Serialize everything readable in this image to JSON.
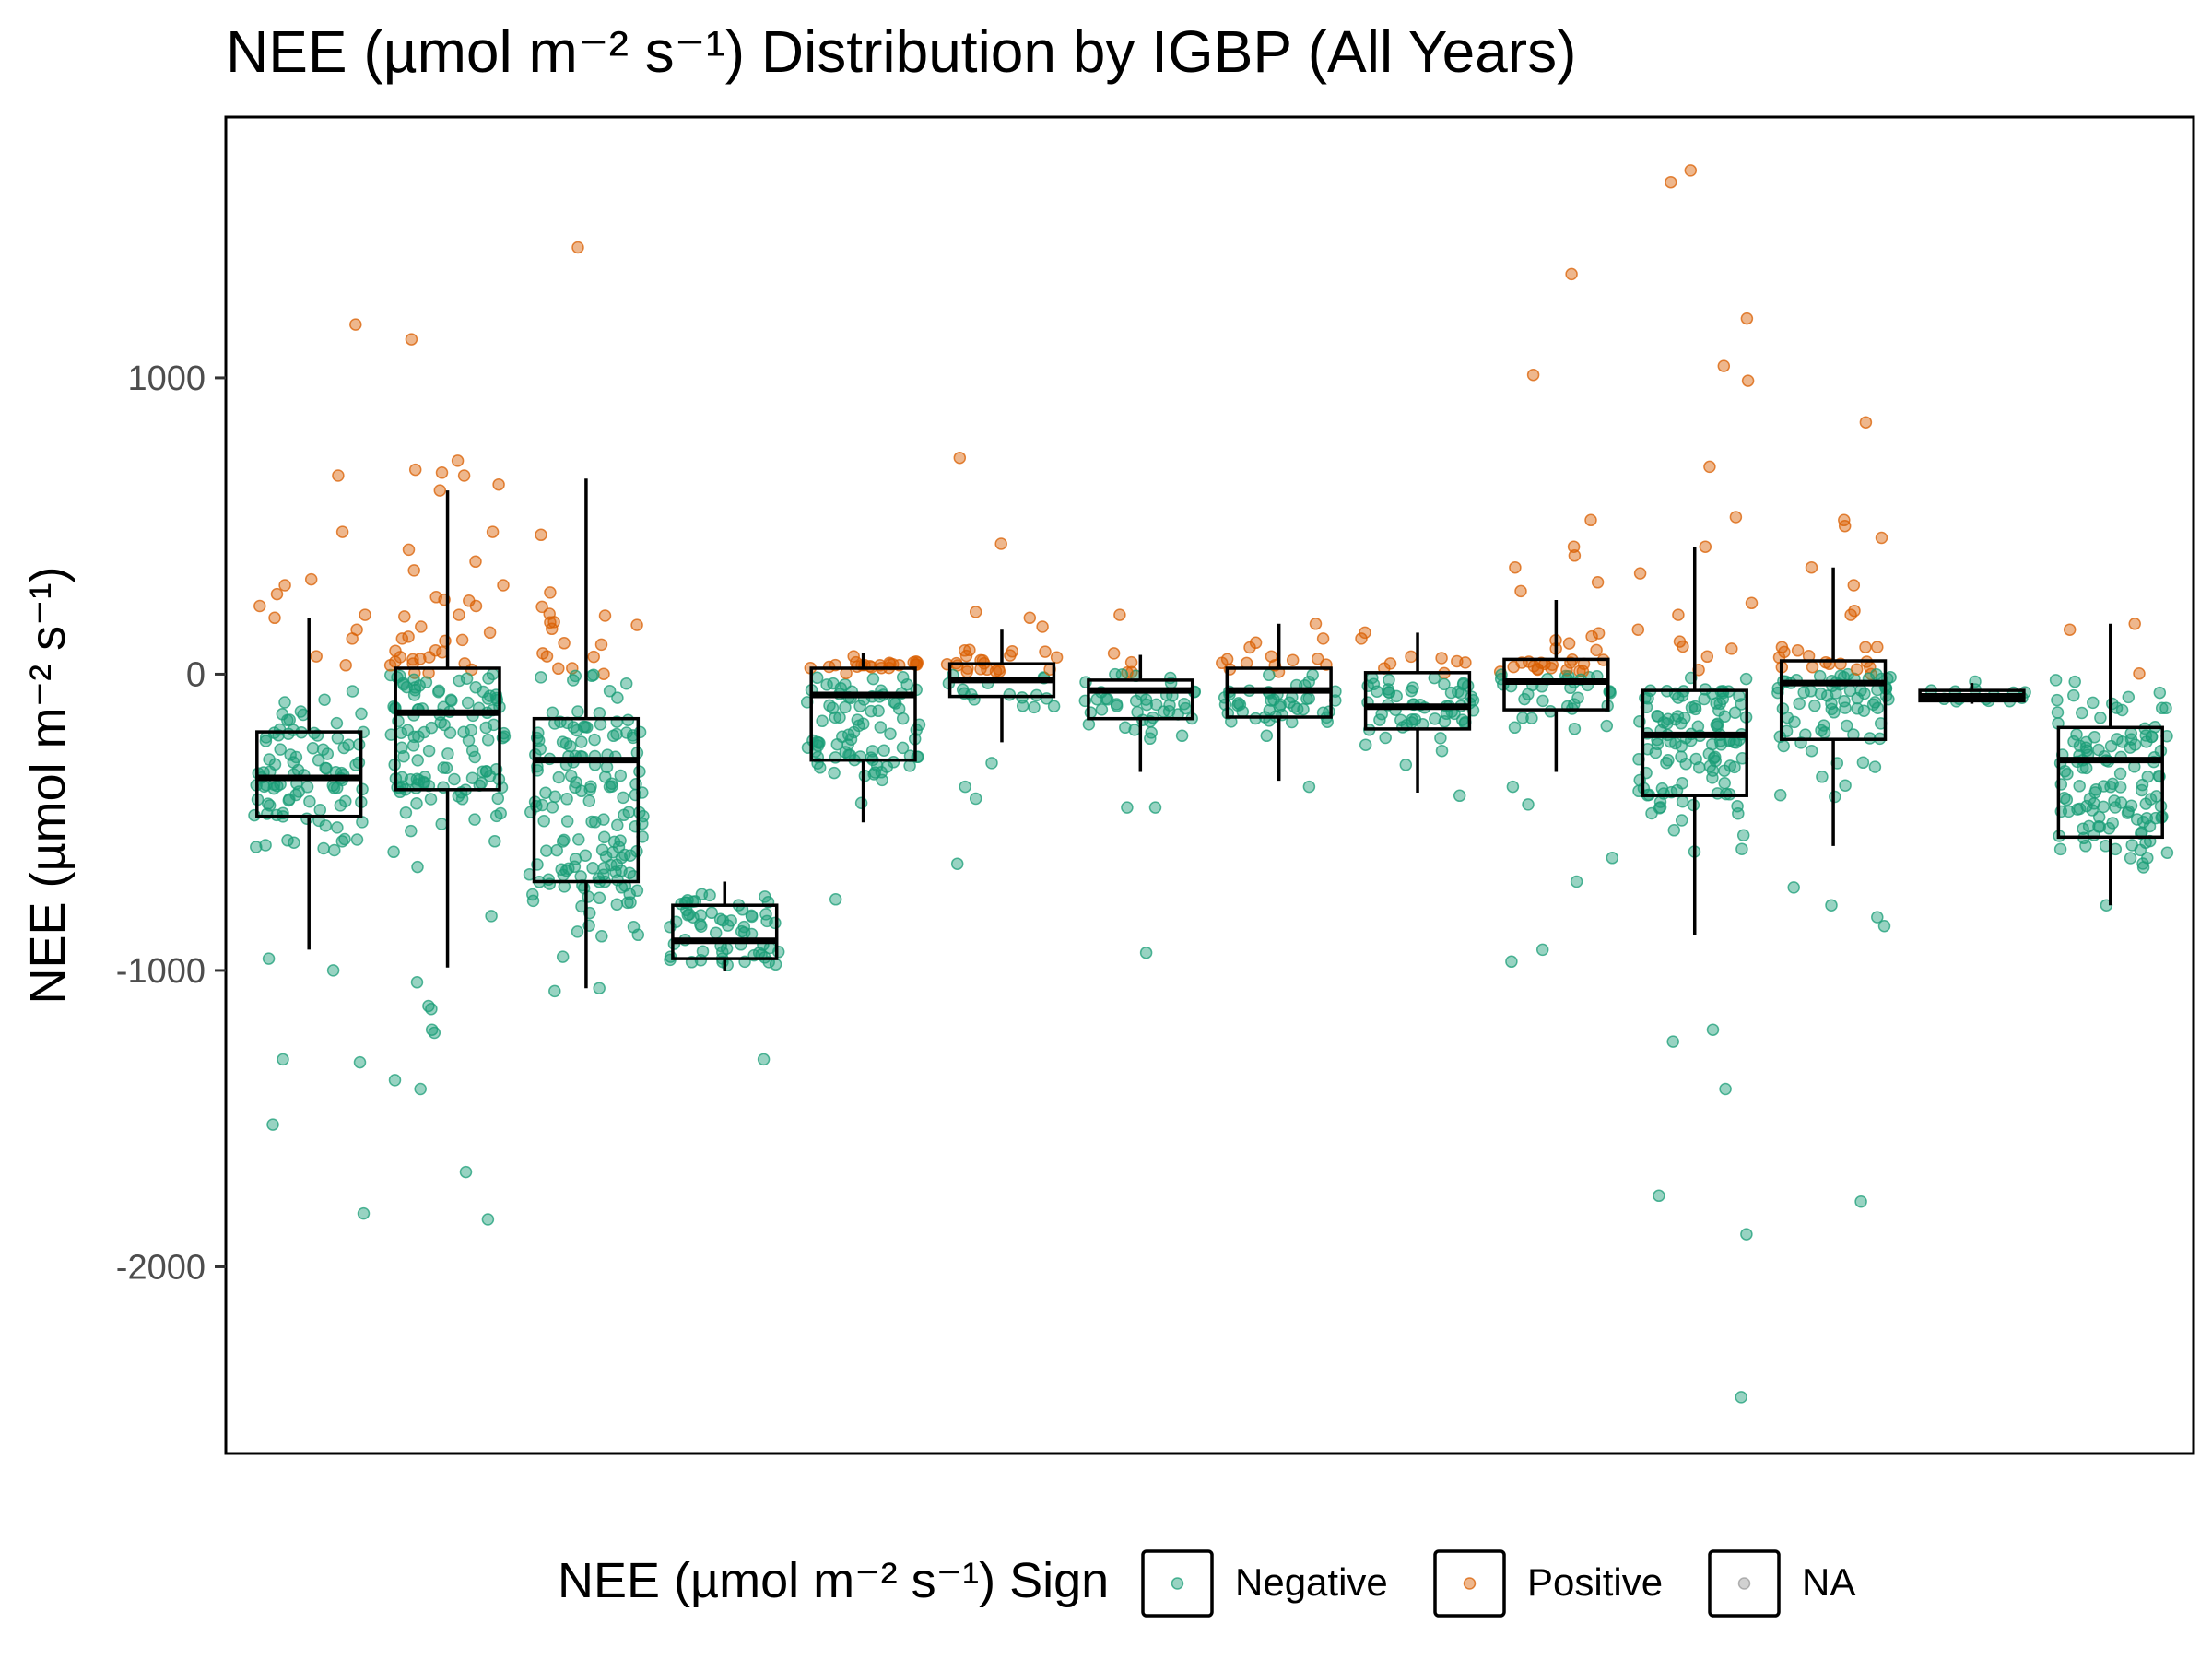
{
  "chart_data": {
    "type": "box",
    "title": "NEE (µmol m⁻² s⁻¹) Distribution by IGBP (All Years)",
    "xlabel": "",
    "ylabel": "NEE (µmol m⁻² s⁻¹)",
    "ylim": [
      -2630,
      1880
    ],
    "yticks": [
      1000,
      0,
      -1000,
      -2000
    ],
    "ytick_labels": [
      "1000",
      "0",
      "-1000",
      "-2000"
    ],
    "grid": false,
    "legend": {
      "title": "NEE (µmol m⁻² s⁻¹) Sign",
      "placement": "bottom",
      "entries": [
        {
          "label": "Negative",
          "color": "#1b9e77"
        },
        {
          "label": "Positive",
          "color": "#d95f02"
        },
        {
          "label": "NA",
          "color": "#999999"
        }
      ]
    },
    "colors": {
      "negative": "#1b9e77",
      "positive": "#d95f02",
      "na": "#999999"
    },
    "boxes": [
      {
        "q1": -480,
        "median": -350,
        "q3": -195,
        "whisker_low": -930,
        "whisker_high": 190,
        "pos_outliers": [
          1180,
          670,
          480,
          320,
          300,
          270,
          230,
          200,
          190,
          150,
          120,
          60,
          30
        ],
        "neg_outliers": [
          -960,
          -1000,
          -1300,
          -1310,
          -1520,
          -1820
        ]
      },
      {
        "q1": -390,
        "median": -130,
        "q3": 20,
        "whisker_low": -990,
        "whisker_high": 620,
        "pos_outliers": [
          1130,
          720,
          690,
          680,
          670,
          640,
          620,
          480,
          420,
          380,
          350,
          300,
          260,
          230,
          200,
          160,
          120,
          80,
          50,
          30
        ],
        "neg_outliers": [
          -1040,
          -1120,
          -1130,
          -1200,
          -1210,
          -1370,
          -1400,
          -1680,
          -1840
        ]
      },
      {
        "q1": -700,
        "median": -290,
        "q3": -150,
        "whisker_low": -1060,
        "whisker_high": 660,
        "pos_outliers": [
          1440,
          470,
          70,
          60
        ],
        "neg_outliers": [
          -1060,
          -1070
        ]
      },
      {
        "q1": -960,
        "median": -900,
        "q3": -780,
        "whisker_low": -1000,
        "whisker_high": -700,
        "pos_outliers": [],
        "neg_outliers": [
          -1300
        ]
      },
      {
        "q1": -290,
        "median": -70,
        "q3": 20,
        "whisker_low": -500,
        "whisker_high": 70,
        "pos_outliers": [
          60,
          40,
          30
        ],
        "neg_outliers": [
          -760
        ]
      },
      {
        "q1": -75,
        "median": -20,
        "q3": 35,
        "whisker_low": -230,
        "whisker_high": 150,
        "pos_outliers": [
          730,
          440,
          210,
          190,
          160
        ],
        "neg_outliers": [
          -300,
          -380,
          -420,
          -640
        ]
      },
      {
        "q1": -150,
        "median": -55,
        "q3": -20,
        "whisker_low": -330,
        "whisker_high": 65,
        "pos_outliers": [
          200,
          70,
          40
        ],
        "neg_outliers": [
          -450,
          -450,
          -940
        ]
      },
      {
        "q1": -145,
        "median": -55,
        "q3": 20,
        "whisker_low": -360,
        "whisker_high": 170,
        "pos_outliers": [
          170,
          120,
          90
        ],
        "neg_outliers": [
          -380
        ]
      },
      {
        "q1": -185,
        "median": -110,
        "q3": 5,
        "whisker_low": -400,
        "whisker_high": 140,
        "pos_outliers": [
          140,
          120
        ],
        "neg_outliers": [
          -410
        ]
      },
      {
        "q1": -120,
        "median": -25,
        "q3": 50,
        "whisker_low": -330,
        "whisker_high": 250,
        "pos_outliers": [
          1350,
          1010,
          520,
          430,
          400,
          360,
          310,
          280
        ],
        "neg_outliers": [
          -380,
          -440,
          -620,
          -700,
          -930,
          -970
        ]
      },
      {
        "q1": -410,
        "median": -205,
        "q3": -55,
        "whisker_low": -880,
        "whisker_high": 430,
        "pos_outliers": [
          1700,
          1660,
          1200,
          1040,
          990,
          700,
          530,
          430,
          340,
          240,
          200,
          150,
          110
        ],
        "neg_outliers": [
          -1200,
          -1240,
          -1400,
          -1760,
          -1890,
          -2440
        ]
      },
      {
        "q1": -220,
        "median": -30,
        "q3": 45,
        "whisker_low": -580,
        "whisker_high": 360,
        "pos_outliers": [
          850,
          520,
          500,
          460,
          360,
          300,
          200
        ],
        "neg_outliers": [
          -720,
          -780,
          -820,
          -850,
          -1780
        ]
      },
      {
        "q1": -90,
        "median": -75,
        "q3": -55,
        "whisker_low": -100,
        "whisker_high": -30,
        "pos_outliers": [],
        "neg_outliers": [
          -25,
          -90
        ]
      },
      {
        "q1": -550,
        "median": -290,
        "q3": -180,
        "whisker_low": -780,
        "whisker_high": 170,
        "pos_outliers": [
          170,
          150
        ],
        "neg_outliers": [
          -20,
          -780
        ]
      }
    ]
  }
}
